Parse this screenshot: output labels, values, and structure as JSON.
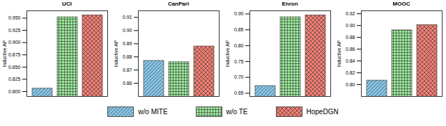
{
  "chart_data": [
    {
      "type": "bar",
      "title": "UCI",
      "y_label": "Inductive AP",
      "categories": [
        "w/o MITE",
        "w/o TE",
        "HopeDGN"
      ],
      "values": [
        0.806,
        0.952,
        0.956
      ],
      "colors": [
        "#87c4e4",
        "#9be89b",
        "#f07f74"
      ],
      "ylim": [
        0.79,
        0.965
      ],
      "yticks": [
        {
          "value": 0.8,
          "label": "0.800"
        },
        0.825,
        {
          "value": 0.85,
          "label": "0.850"
        },
        0.875,
        {
          "value": 0.9,
          "label": "0.900"
        },
        0.925,
        {
          "value": 0.95,
          "label": "0.950"
        }
      ],
      "tick_labels": "y",
      "legend": "bottom"
    },
    {
      "type": "bar",
      "title": "CanParl",
      "y_label": "Inductive AP",
      "categories": [
        "w/o MITE",
        "w/o TE",
        "HopeDGN"
      ],
      "values": [
        0.877,
        0.876,
        0.888
      ],
      "colors": [
        "#87c4e4",
        "#9be89b",
        "#f07f74"
      ],
      "ylim": [
        0.85,
        0.915
      ],
      "yticks": [
        0.86,
        0.87,
        0.88,
        0.89,
        {
          "value": 0.9,
          "label": "0.90"
        },
        0.91
      ],
      "tick_labels": "y",
      "legend": "bottom"
    },
    {
      "type": "bar",
      "title": "Enron",
      "y_label": "Inductive AP",
      "categories": [
        "w/o MITE",
        "w/o TE",
        "HopeDGN"
      ],
      "values": [
        0.673,
        0.89,
        0.896
      ],
      "colors": [
        "#87c4e4",
        "#9be89b",
        "#f07f74"
      ],
      "ylim": [
        0.64,
        0.91
      ],
      "yticks": [
        0.65,
        {
          "value": 0.7,
          "label": "0.70"
        },
        0.75,
        {
          "value": 0.8,
          "label": "0.80"
        },
        0.85,
        {
          "value": 0.9,
          "label": "0.90"
        }
      ],
      "tick_labels": "y",
      "legend": "bottom"
    },
    {
      "type": "bar",
      "title": "MOOC",
      "y_label": "Inductive AP",
      "categories": [
        "w/o MITE",
        "w/o TE",
        "HopeDGN"
      ],
      "values": [
        0.807,
        0.892,
        0.901
      ],
      "colors": [
        "#87c4e4",
        "#9be89b",
        "#f07f74"
      ],
      "ylim": [
        0.78,
        0.925
      ],
      "yticks": [
        {
          "value": 0.8,
          "label": "0.80"
        },
        0.82,
        0.84,
        0.86,
        0.88,
        {
          "value": 0.9,
          "label": "0.90"
        },
        0.92
      ],
      "tick_labels": "y",
      "legend": "bottom"
    }
  ]
}
